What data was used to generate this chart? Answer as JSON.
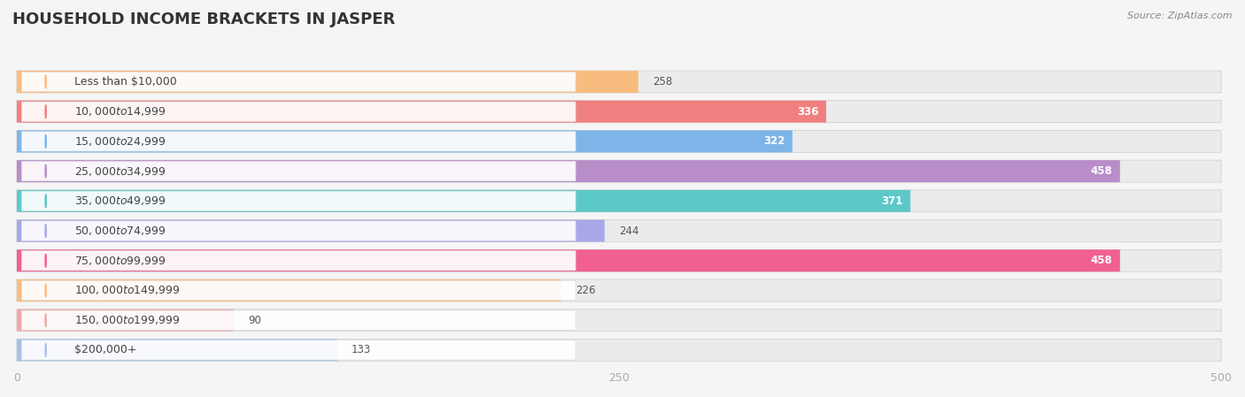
{
  "title": "HOUSEHOLD INCOME BRACKETS IN JASPER",
  "source": "Source: ZipAtlas.com",
  "categories": [
    "Less than $10,000",
    "$10,000 to $14,999",
    "$15,000 to $24,999",
    "$25,000 to $34,999",
    "$35,000 to $49,999",
    "$50,000 to $74,999",
    "$75,000 to $99,999",
    "$100,000 to $149,999",
    "$150,000 to $199,999",
    "$200,000+"
  ],
  "values": [
    258,
    336,
    322,
    458,
    371,
    244,
    458,
    226,
    90,
    133
  ],
  "colors": [
    "#F9BC7F",
    "#F08080",
    "#7EB5E8",
    "#B88DC8",
    "#5DC8C8",
    "#A8A8E8",
    "#F06090",
    "#F9BC7F",
    "#F0A8A8",
    "#A8C0E8"
  ],
  "xlim": [
    0,
    500
  ],
  "xticks": [
    0,
    250,
    500
  ],
  "background_color": "#f5f5f5",
  "row_bg_color": "#ebebeb",
  "title_fontsize": 13,
  "label_fontsize": 9,
  "value_fontsize": 8.5,
  "source_fontsize": 8
}
